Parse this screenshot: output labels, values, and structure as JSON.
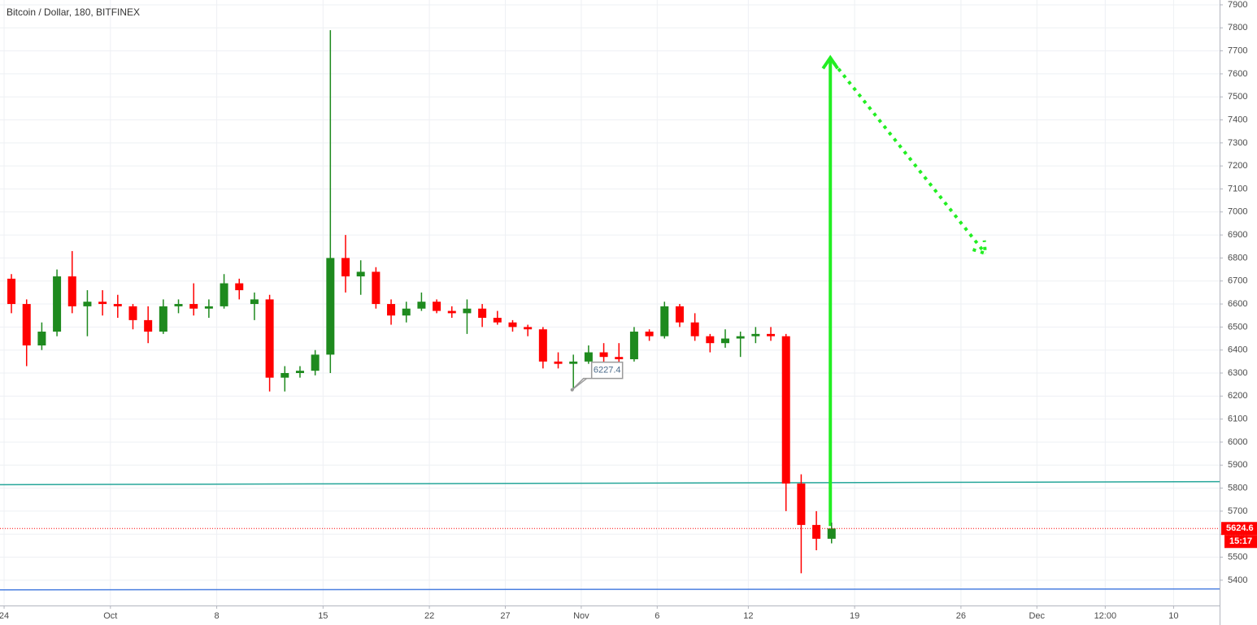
{
  "chart_data": {
    "type": "candlestick",
    "title": "Bitcoin / Dollar, 180, BITFINEX",
    "x": [
      0,
      1,
      2,
      3,
      4,
      5,
      6,
      7,
      8,
      9,
      10,
      11,
      12,
      13,
      14,
      15,
      16,
      17,
      18,
      19,
      20,
      21,
      22,
      23,
      24,
      25,
      26,
      27,
      28,
      29,
      30,
      31,
      32,
      33,
      34,
      35,
      36,
      37,
      38,
      39,
      40,
      41,
      42,
      43,
      44,
      45,
      46,
      47,
      48,
      49,
      50,
      51,
      52,
      53,
      54
    ],
    "open": [
      6710,
      6600,
      6420,
      6480,
      6720,
      6590,
      6610,
      6600,
      6590,
      6530,
      6480,
      6590,
      6600,
      6580,
      6590,
      6690,
      6600,
      6620,
      6280,
      6300,
      6310,
      6380,
      6800,
      6720,
      6740,
      6600,
      6550,
      6580,
      6610,
      6570,
      6560,
      6580,
      6540,
      6520,
      6500,
      6490,
      6350,
      6340,
      6350,
      6390,
      6370,
      6360,
      6480,
      6460,
      6590,
      6520,
      6460,
      6430,
      6450,
      6460,
      6470,
      6460,
      5820,
      5640,
      5580
    ],
    "high": [
      6730,
      6620,
      6520,
      6750,
      6830,
      6660,
      6660,
      6640,
      6600,
      6590,
      6620,
      6620,
      6690,
      6620,
      6730,
      6710,
      6650,
      6640,
      6330,
      6330,
      6400,
      7790,
      6900,
      6790,
      6760,
      6620,
      6610,
      6650,
      6620,
      6590,
      6620,
      6600,
      6570,
      6530,
      6510,
      6500,
      6390,
      6380,
      6420,
      6430,
      6430,
      6500,
      6490,
      6610,
      6600,
      6560,
      6470,
      6490,
      6480,
      6500,
      6500,
      6470,
      5860,
      5700,
      5650
    ],
    "low": [
      6560,
      6330,
      6400,
      6460,
      6560,
      6460,
      6550,
      6540,
      6490,
      6430,
      6470,
      6560,
      6550,
      6540,
      6580,
      6620,
      6530,
      6220,
      6220,
      6280,
      6290,
      6300,
      6650,
      6640,
      6580,
      6510,
      6520,
      6570,
      6560,
      6540,
      6470,
      6500,
      6510,
      6480,
      6460,
      6320,
      6320,
      6227.4,
      6340,
      6340,
      6340,
      6350,
      6440,
      6450,
      6500,
      6440,
      6390,
      6410,
      6370,
      6430,
      6440,
      5700,
      5430,
      5530,
      5560
    ],
    "close": [
      6600,
      6420,
      6480,
      6720,
      6590,
      6610,
      6600,
      6590,
      6530,
      6480,
      6590,
      6600,
      6580,
      6590,
      6690,
      6660,
      6620,
      6280,
      6300,
      6310,
      6380,
      6800,
      6720,
      6740,
      6600,
      6550,
      6580,
      6610,
      6570,
      6560,
      6580,
      6540,
      6520,
      6500,
      6490,
      6350,
      6340,
      6350,
      6390,
      6370,
      6360,
      6480,
      6460,
      6590,
      6520,
      6460,
      6430,
      6450,
      6460,
      6470,
      6460,
      5820,
      5640,
      5580,
      5624.6
    ],
    "up_color": "#1e8a1e",
    "down_color": "#ff0000",
    "xlim": [
      -0.27,
      80.03
    ],
    "ylim": [
      5290,
      7921
    ],
    "xticks": [
      {
        "value": 0,
        "label": "24"
      },
      {
        "value": 7,
        "label": "Oct"
      },
      {
        "value": 14,
        "label": "8"
      },
      {
        "value": 21,
        "label": "15"
      },
      {
        "value": 28,
        "label": "22"
      },
      {
        "value": 33,
        "label": "27"
      },
      {
        "value": 38,
        "label": "Nov"
      },
      {
        "value": 43,
        "label": "6"
      },
      {
        "value": 49,
        "label": "12"
      },
      {
        "value": 56,
        "label": "19"
      },
      {
        "value": 63,
        "label": "26"
      },
      {
        "value": 68,
        "label": "Dec"
      },
      {
        "value": 72.5,
        "label": "12:00"
      },
      {
        "value": 77,
        "label": "10"
      }
    ],
    "yticks": [
      5400,
      5500,
      5600,
      5700,
      5800,
      5900,
      6000,
      6100,
      6200,
      6300,
      6400,
      6500,
      6600,
      6700,
      6800,
      6900,
      7000,
      7100,
      7200,
      7300,
      7400,
      7500,
      7600,
      7700,
      7800,
      7900
    ],
    "grid": true,
    "last_price": 5624.6,
    "countdown": "15:17",
    "lines": [
      {
        "x": [
          -0.27,
          80.03
        ],
        "y": [
          5815,
          5828
        ],
        "color": "#26a69a",
        "style": "solid"
      },
      {
        "x": [
          -0.27,
          80.03
        ],
        "y": [
          5358,
          5362
        ],
        "color": "#4a7fe0",
        "style": "solid"
      },
      {
        "x": [
          54.4,
          54.4
        ],
        "y": [
          5635,
          7670
        ],
        "color": "#22ee22",
        "style": "arrow"
      },
      {
        "x": [
          54.6,
          64.6
        ],
        "y": [
          7650,
          6820
        ],
        "color": "#22ee22",
        "style": "dotted-arrow"
      }
    ],
    "annotations": [
      {
        "x": 37.4,
        "y": 6227.4
      }
    ]
  }
}
